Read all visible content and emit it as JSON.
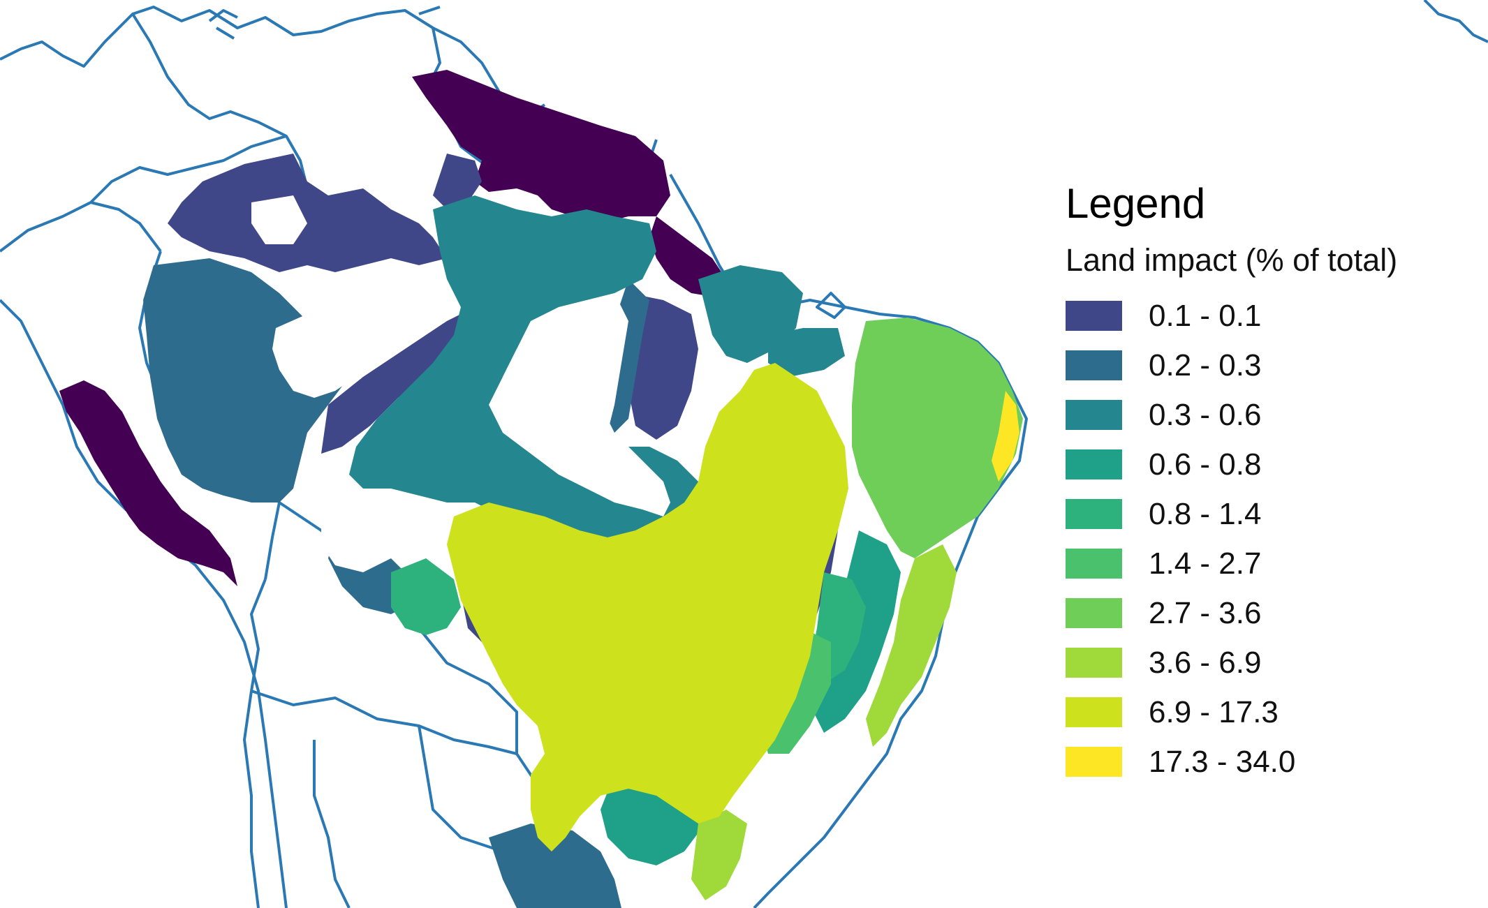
{
  "legend": {
    "title": "Legend",
    "subtitle": "Land impact (% of total)",
    "items": [
      {
        "label": "0.1 - 0.1",
        "color": "#3f4788"
      },
      {
        "label": "0.2 - 0.3",
        "color": "#2e6c8e"
      },
      {
        "label": "0.3 - 0.6",
        "color": "#24868e"
      },
      {
        "label": "0.6 - 0.8",
        "color": "#1fa088"
      },
      {
        "label": "0.8 - 1.4",
        "color": "#2db27d"
      },
      {
        "label": "1.4 - 2.7",
        "color": "#4ac16d"
      },
      {
        "label": "2.7 - 3.6",
        "color": "#6ece58"
      },
      {
        "label": "3.6 - 6.9",
        "color": "#9fda3a"
      },
      {
        "label": "6.9 - 17.3",
        "color": "#cde11d"
      },
      {
        "label": "17.3 - 34.0",
        "color": "#fde725"
      }
    ]
  },
  "map": {
    "border_color": "#2a78b4",
    "extra_dark_color": "#440154",
    "background": "#ffffff"
  }
}
